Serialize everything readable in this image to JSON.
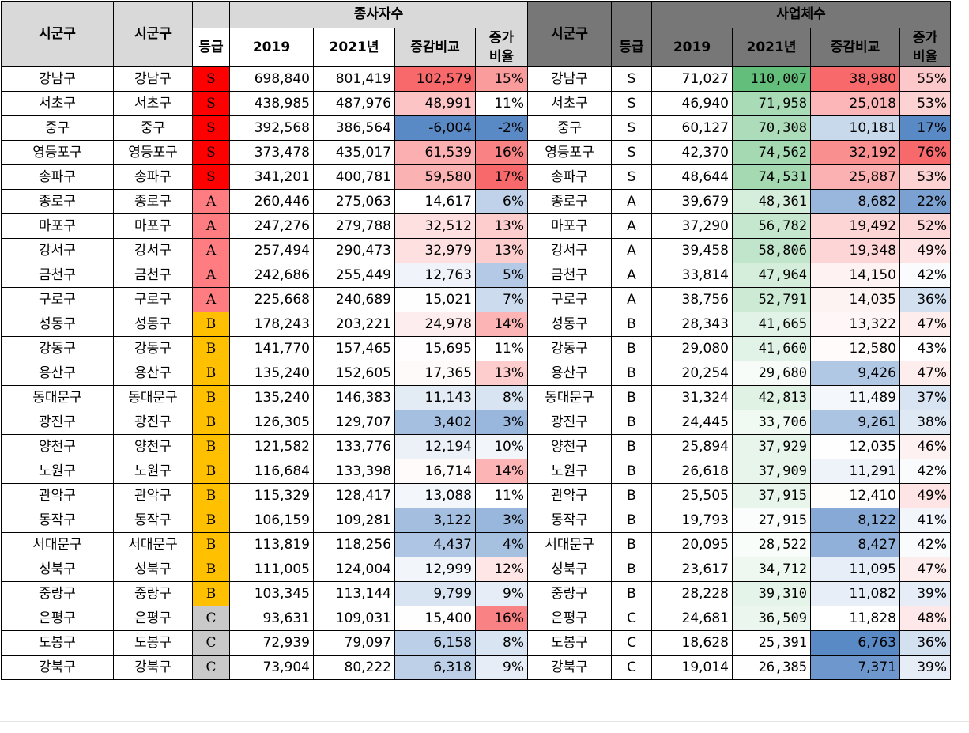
{
  "headers": {
    "sigungu": "시군구",
    "grade": "등급",
    "group_employees": "종사자수",
    "group_businesses": "사업체수",
    "y2019": "2019",
    "y2021": "2021년",
    "change": "증감비교",
    "ratio_line1": "증가",
    "ratio_line2": "비율"
  },
  "colors": {
    "grade_S": "#ff0000",
    "grade_A": "#ff7c80",
    "grade_B": "#ffc000",
    "grade_C": "#c9c9c9",
    "header_grey": "#d9d9d9",
    "header_dark": "#777777",
    "scale_high": "#f8696b",
    "scale_low": "#5a8ac6",
    "scale_green": "#63be7b"
  },
  "rows": [
    {
      "name": "강남구",
      "grade": "S",
      "emp2019": "698,840",
      "emp2021": "801,419",
      "empChange": "102,579",
      "empRatio": "15%",
      "biz2019": "71,027",
      "biz2021": "110,007",
      "bizChange": "38,980",
      "bizRatio": "55%"
    },
    {
      "name": "서초구",
      "grade": "S",
      "emp2019": "438,985",
      "emp2021": "487,976",
      "empChange": "48,991",
      "empRatio": "11%",
      "biz2019": "46,940",
      "biz2021": "71,958",
      "bizChange": "25,018",
      "bizRatio": "53%"
    },
    {
      "name": "중구",
      "grade": "S",
      "emp2019": "392,568",
      "emp2021": "386,564",
      "empChange": "-6,004",
      "empRatio": "-2%",
      "biz2019": "60,127",
      "biz2021": "70,308",
      "bizChange": "10,181",
      "bizRatio": "17%"
    },
    {
      "name": "영등포구",
      "grade": "S",
      "emp2019": "373,478",
      "emp2021": "435,017",
      "empChange": "61,539",
      "empRatio": "16%",
      "biz2019": "42,370",
      "biz2021": "74,562",
      "bizChange": "32,192",
      "bizRatio": "76%"
    },
    {
      "name": "송파구",
      "grade": "S",
      "emp2019": "341,201",
      "emp2021": "400,781",
      "empChange": "59,580",
      "empRatio": "17%",
      "biz2019": "48,644",
      "biz2021": "74,531",
      "bizChange": "25,887",
      "bizRatio": "53%"
    },
    {
      "name": "종로구",
      "grade": "A",
      "emp2019": "260,446",
      "emp2021": "275,063",
      "empChange": "14,617",
      "empRatio": "6%",
      "biz2019": "39,679",
      "biz2021": "48,361",
      "bizChange": "8,682",
      "bizRatio": "22%"
    },
    {
      "name": "마포구",
      "grade": "A",
      "emp2019": "247,276",
      "emp2021": "279,788",
      "empChange": "32,512",
      "empRatio": "13%",
      "biz2019": "37,290",
      "biz2021": "56,782",
      "bizChange": "19,492",
      "bizRatio": "52%"
    },
    {
      "name": "강서구",
      "grade": "A",
      "emp2019": "257,494",
      "emp2021": "290,473",
      "empChange": "32,979",
      "empRatio": "13%",
      "biz2019": "39,458",
      "biz2021": "58,806",
      "bizChange": "19,348",
      "bizRatio": "49%"
    },
    {
      "name": "금천구",
      "grade": "A",
      "emp2019": "242,686",
      "emp2021": "255,449",
      "empChange": "12,763",
      "empRatio": "5%",
      "biz2019": "33,814",
      "biz2021": "47,964",
      "bizChange": "14,150",
      "bizRatio": "42%"
    },
    {
      "name": "구로구",
      "grade": "A",
      "emp2019": "225,668",
      "emp2021": "240,689",
      "empChange": "15,021",
      "empRatio": "7%",
      "biz2019": "38,756",
      "biz2021": "52,791",
      "bizChange": "14,035",
      "bizRatio": "36%"
    },
    {
      "name": "성동구",
      "grade": "B",
      "emp2019": "178,243",
      "emp2021": "203,221",
      "empChange": "24,978",
      "empRatio": "14%",
      "biz2019": "28,343",
      "biz2021": "41,665",
      "bizChange": "13,322",
      "bizRatio": "47%"
    },
    {
      "name": "강동구",
      "grade": "B",
      "emp2019": "141,770",
      "emp2021": "157,465",
      "empChange": "15,695",
      "empRatio": "11%",
      "biz2019": "29,080",
      "biz2021": "41,660",
      "bizChange": "12,580",
      "bizRatio": "43%"
    },
    {
      "name": "용산구",
      "grade": "B",
      "emp2019": "135,240",
      "emp2021": "152,605",
      "empChange": "17,365",
      "empRatio": "13%",
      "biz2019": "20,254",
      "biz2021": "29,680",
      "bizChange": "9,426",
      "bizRatio": "47%"
    },
    {
      "name": "동대문구",
      "grade": "B",
      "emp2019": "135,240",
      "emp2021": "146,383",
      "empChange": "11,143",
      "empRatio": "8%",
      "biz2019": "31,324",
      "biz2021": "42,813",
      "bizChange": "11,489",
      "bizRatio": "37%"
    },
    {
      "name": "광진구",
      "grade": "B",
      "emp2019": "126,305",
      "emp2021": "129,707",
      "empChange": "3,402",
      "empRatio": "3%",
      "biz2019": "24,445",
      "biz2021": "33,706",
      "bizChange": "9,261",
      "bizRatio": "38%"
    },
    {
      "name": "양천구",
      "grade": "B",
      "emp2019": "121,582",
      "emp2021": "133,776",
      "empChange": "12,194",
      "empRatio": "10%",
      "biz2019": "25,894",
      "biz2021": "37,929",
      "bizChange": "12,035",
      "bizRatio": "46%"
    },
    {
      "name": "노원구",
      "grade": "B",
      "emp2019": "116,684",
      "emp2021": "133,398",
      "empChange": "16,714",
      "empRatio": "14%",
      "biz2019": "26,618",
      "biz2021": "37,909",
      "bizChange": "11,291",
      "bizRatio": "42%"
    },
    {
      "name": "관악구",
      "grade": "B",
      "emp2019": "115,329",
      "emp2021": "128,417",
      "empChange": "13,088",
      "empRatio": "11%",
      "biz2019": "25,505",
      "biz2021": "37,915",
      "bizChange": "12,410",
      "bizRatio": "49%"
    },
    {
      "name": "동작구",
      "grade": "B",
      "emp2019": "106,159",
      "emp2021": "109,281",
      "empChange": "3,122",
      "empRatio": "3%",
      "biz2019": "19,793",
      "biz2021": "27,915",
      "bizChange": "8,122",
      "bizRatio": "41%"
    },
    {
      "name": "서대문구",
      "grade": "B",
      "emp2019": "113,819",
      "emp2021": "118,256",
      "empChange": "4,437",
      "empRatio": "4%",
      "biz2019": "20,095",
      "biz2021": "28,522",
      "bizChange": "8,427",
      "bizRatio": "42%"
    },
    {
      "name": "성북구",
      "grade": "B",
      "emp2019": "111,005",
      "emp2021": "124,004",
      "empChange": "12,999",
      "empRatio": "12%",
      "biz2019": "23,617",
      "biz2021": "34,712",
      "bizChange": "11,095",
      "bizRatio": "47%"
    },
    {
      "name": "중랑구",
      "grade": "B",
      "emp2019": "103,345",
      "emp2021": "113,144",
      "empChange": "9,799",
      "empRatio": "9%",
      "biz2019": "28,228",
      "biz2021": "39,310",
      "bizChange": "11,082",
      "bizRatio": "39%"
    },
    {
      "name": "은평구",
      "grade": "C",
      "emp2019": "93,631",
      "emp2021": "109,031",
      "empChange": "15,400",
      "empRatio": "16%",
      "biz2019": "24,681",
      "biz2021": "36,509",
      "bizChange": "11,828",
      "bizRatio": "48%"
    },
    {
      "name": "도봉구",
      "grade": "C",
      "emp2019": "72,939",
      "emp2021": "79,097",
      "empChange": "6,158",
      "empRatio": "8%",
      "biz2019": "18,628",
      "biz2021": "25,391",
      "bizChange": "6,763",
      "bizRatio": "36%"
    },
    {
      "name": "강북구",
      "grade": "C",
      "emp2019": "73,904",
      "emp2021": "80,222",
      "empChange": "6,318",
      "empRatio": "9%",
      "biz2019": "19,014",
      "biz2021": "26,385",
      "bizChange": "7,371",
      "bizRatio": "39%"
    }
  ]
}
